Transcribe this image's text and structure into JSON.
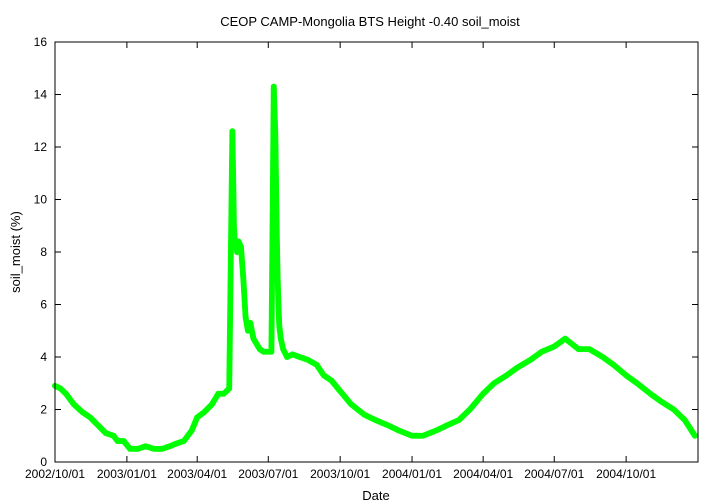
{
  "chart_data": {
    "type": "line",
    "title": "CEOP CAMP-Mongolia BTS Height -0.40 soil_moist",
    "xlabel": "Date",
    "ylabel": "soil_moist (%)",
    "ylim": [
      0,
      16
    ],
    "yticks": [
      0,
      2,
      4,
      6,
      8,
      10,
      12,
      14,
      16
    ],
    "xlim": [
      "2002/10/01",
      "2005/01/01"
    ],
    "xticks": [
      "2002/10/01",
      "2003/01/01",
      "2003/04/01",
      "2003/07/01",
      "2003/10/01",
      "2004/01/01",
      "2004/04/01",
      "2004/07/01",
      "2004/10/01"
    ],
    "x_tick_labels_rendered": [
      "2002/10/01",
      "2003/01/01",
      "2003/04/01",
      "2003/07/01",
      "2003/10/01",
      "2004/01/01",
      "2004/04/01",
      "2004/07/01",
      "2004/10/01"
    ],
    "grid": false,
    "marker": "circle",
    "color": "#00ff00",
    "series": [
      {
        "name": "soil_moist",
        "x": [
          "2002/10/01",
          "2002/10/08",
          "2002/10/15",
          "2002/10/25",
          "2002/11/05",
          "2002/11/15",
          "2002/11/25",
          "2002/12/05",
          "2002/12/15",
          "2002/12/20",
          "2002/12/28",
          "2003/01/05",
          "2003/01/15",
          "2003/01/25",
          "2003/02/05",
          "2003/02/15",
          "2003/02/25",
          "2003/03/05",
          "2003/03/15",
          "2003/03/25",
          "2003/04/01",
          "2003/04/10",
          "2003/04/20",
          "2003/04/28",
          "2003/05/05",
          "2003/05/12",
          "2003/05/16",
          "2003/05/17",
          "2003/05/18",
          "2003/05/19",
          "2003/05/20",
          "2003/05/21",
          "2003/05/22",
          "2003/05/24",
          "2003/05/27",
          "2003/05/30",
          "2003/06/02",
          "2003/06/05",
          "2003/06/08",
          "2003/06/12",
          "2003/06/16",
          "2003/06/20",
          "2003/06/25",
          "2003/06/30",
          "2003/07/05",
          "2003/07/08",
          "2003/07/10",
          "2003/07/11",
          "2003/07/12",
          "2003/07/13",
          "2003/07/14",
          "2003/07/15",
          "2003/07/17",
          "2003/07/20",
          "2003/07/25",
          "2003/08/01",
          "2003/08/10",
          "2003/08/20",
          "2003/09/01",
          "2003/09/10",
          "2003/09/20",
          "2003/10/01",
          "2003/10/15",
          "2003/11/01",
          "2003/11/15",
          "2003/12/01",
          "2003/12/15",
          "2004/01/01",
          "2004/01/15",
          "2004/02/01",
          "2004/02/15",
          "2004/03/01",
          "2004/03/15",
          "2004/04/01",
          "2004/04/15",
          "2004/05/01",
          "2004/05/15",
          "2004/06/01",
          "2004/06/15",
          "2004/07/01",
          "2004/07/15",
          "2004/08/01",
          "2004/08/15",
          "2004/09/01",
          "2004/09/15",
          "2004/10/01",
          "2004/10/15",
          "2004/11/01",
          "2004/11/15",
          "2004/12/01",
          "2004/12/15",
          "2004/12/28"
        ],
        "y": [
          2.9,
          2.8,
          2.6,
          2.2,
          1.9,
          1.7,
          1.4,
          1.1,
          1.0,
          0.8,
          0.8,
          0.5,
          0.5,
          0.6,
          0.5,
          0.5,
          0.6,
          0.7,
          0.8,
          1.2,
          1.7,
          1.9,
          2.2,
          2.6,
          2.6,
          2.8,
          12.6,
          11.0,
          9.0,
          8.5,
          8.3,
          8.2,
          8.0,
          8.4,
          8.2,
          7.0,
          5.5,
          5.0,
          5.3,
          4.7,
          4.5,
          4.3,
          4.2,
          4.2,
          4.2,
          14.3,
          12.5,
          10.5,
          8.5,
          7.0,
          6.0,
          5.2,
          4.7,
          4.3,
          4.0,
          4.1,
          4.0,
          3.9,
          3.7,
          3.3,
          3.1,
          2.7,
          2.2,
          1.8,
          1.6,
          1.4,
          1.2,
          1.0,
          1.0,
          1.2,
          1.4,
          1.6,
          2.0,
          2.6,
          3.0,
          3.3,
          3.6,
          3.9,
          4.2,
          4.4,
          4.7,
          4.3,
          4.3,
          4.0,
          3.7,
          3.3,
          3.0,
          2.6,
          2.3,
          2.0,
          1.6,
          1.0
        ]
      }
    ]
  }
}
